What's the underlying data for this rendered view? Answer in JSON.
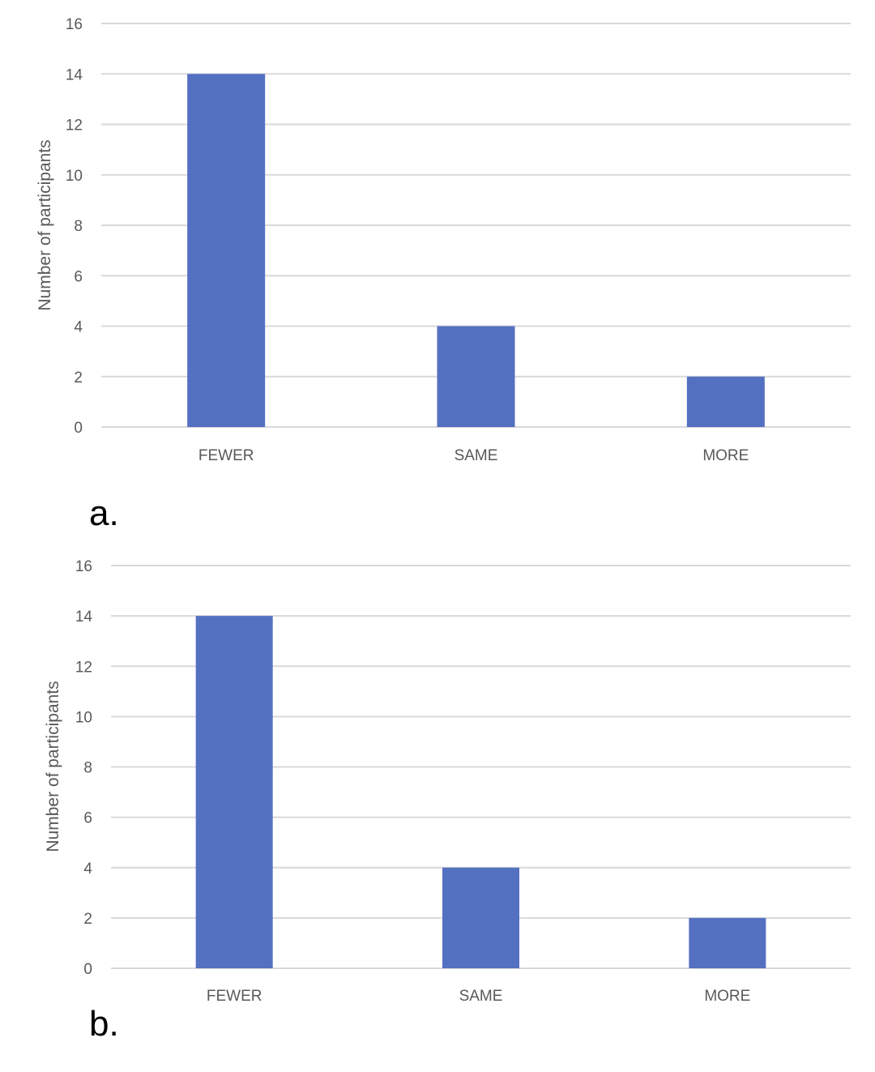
{
  "chart_data": [
    {
      "type": "bar",
      "panel_label": "a.",
      "title": "",
      "xlabel": "",
      "ylabel": "Number of participants",
      "categories": [
        "FEWER",
        "SAME",
        "MORE"
      ],
      "values": [
        14,
        4,
        2
      ],
      "ylim": [
        0,
        16
      ],
      "yticks": [
        "0",
        "2",
        "4",
        "6",
        "8",
        "10",
        "12",
        "14",
        "16"
      ],
      "grid": true,
      "legend": "none",
      "bar_color": "#5470C1",
      "grid_color": "#D9D9D9"
    },
    {
      "type": "bar",
      "panel_label": "b.",
      "title": "",
      "xlabel": "",
      "ylabel": "Number of participants",
      "categories": [
        "FEWER",
        "SAME",
        "MORE"
      ],
      "values": [
        14,
        4,
        2
      ],
      "ylim": [
        0,
        16
      ],
      "yticks": [
        "0",
        "2",
        "4",
        "6",
        "8",
        "10",
        "12",
        "14",
        "16"
      ],
      "grid": true,
      "legend": "none",
      "bar_color": "#5470C1",
      "grid_color": "#D9D9D9"
    }
  ]
}
